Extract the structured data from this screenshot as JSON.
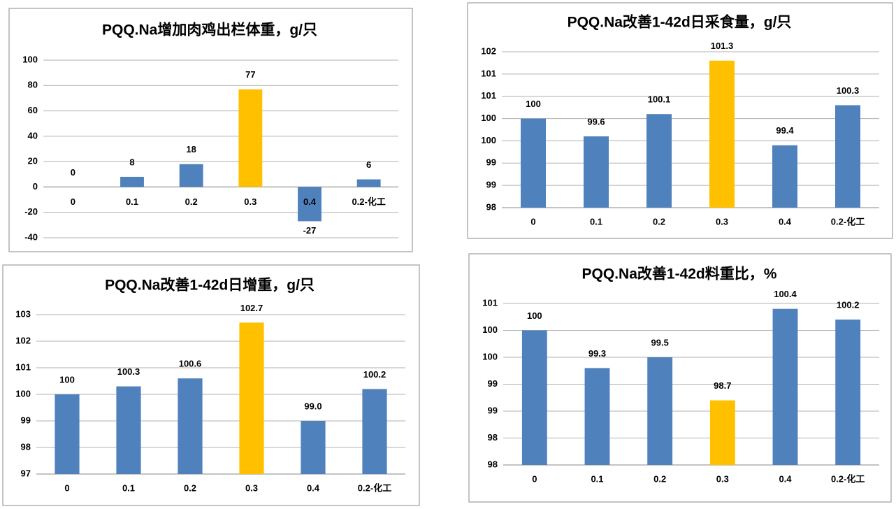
{
  "chart_data": [
    {
      "type": "bar",
      "title": "PQQ.Na增加肉鸡出栏体重，g/只",
      "categories": [
        "0",
        "0.1",
        "0.2",
        "0.3",
        "0.4",
        "0.2-化工"
      ],
      "values": [
        0,
        8,
        18,
        77,
        -27,
        6
      ],
      "colors": [
        "#4f81bd",
        "#4f81bd",
        "#4f81bd",
        "#ffc000",
        "#4f81bd",
        "#4f81bd"
      ],
      "ylim": [
        -40,
        100
      ],
      "yticks": [
        -40,
        -20,
        0,
        20,
        40,
        60,
        80,
        100
      ],
      "grid": true
    },
    {
      "type": "bar",
      "title": "PQQ.Na改善1-42d日采食量，g/只",
      "categories": [
        "0",
        "0.1",
        "0.2",
        "0.3",
        "0.4",
        "0.2-化工"
      ],
      "values": [
        100,
        99.6,
        100.1,
        101.3,
        99.4,
        100.3
      ],
      "colors": [
        "#4f81bd",
        "#4f81bd",
        "#4f81bd",
        "#ffc000",
        "#4f81bd",
        "#4f81bd"
      ],
      "ylim": [
        98,
        101.5
      ],
      "yticks": [
        98,
        {
          "value": 98.5,
          "label": "99"
        },
        99,
        {
          "value": 99.5,
          "label": "100"
        },
        100,
        {
          "value": 100.5,
          "label": "101"
        },
        101,
        {
          "value": 101.5,
          "label": "102"
        }
      ],
      "grid": true
    },
    {
      "type": "bar",
      "title": "PQQ.Na改善1-42d日增重，g/只",
      "categories": [
        "0",
        "0.1",
        "0.2",
        "0.3",
        "0.4",
        "0.2-化工"
      ],
      "values": [
        100,
        100.3,
        100.6,
        102.7,
        99.0,
        100.2
      ],
      "value_labels": [
        "100",
        "100.3",
        "100.6",
        "102.7",
        "99.0",
        "100.2"
      ],
      "colors": [
        "#4f81bd",
        "#4f81bd",
        "#4f81bd",
        "#ffc000",
        "#4f81bd",
        "#4f81bd"
      ],
      "ylim": [
        97,
        103
      ],
      "yticks": [
        97,
        98,
        99,
        100,
        101,
        102,
        103
      ],
      "grid": true
    },
    {
      "type": "bar",
      "title": "PQQ.Na改善1-42d料重比，%",
      "categories": [
        "0",
        "0.1",
        "0.2",
        "0.3",
        "0.4",
        "0.2-化工"
      ],
      "values": [
        100,
        99.3,
        99.5,
        98.7,
        100.4,
        100.2
      ],
      "colors": [
        "#4f81bd",
        "#4f81bd",
        "#4f81bd",
        "#ffc000",
        "#4f81bd",
        "#4f81bd"
      ],
      "ylim": [
        97.5,
        100.5
      ],
      "yticks": [
        {
          "value": 97.5,
          "label": "98"
        },
        98,
        {
          "value": 98.5,
          "label": "99"
        },
        99,
        {
          "value": 99.5,
          "label": "100"
        },
        100,
        {
          "value": 100.5,
          "label": "101"
        }
      ],
      "grid": true
    }
  ]
}
